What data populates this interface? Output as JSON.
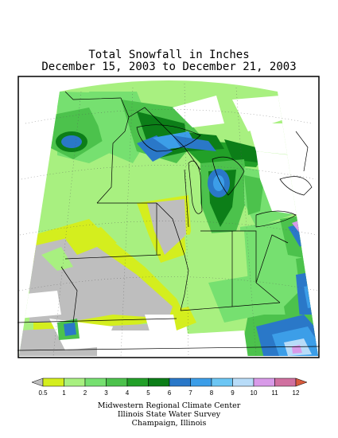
{
  "title": {
    "line1": "Total Snowfall in Inches",
    "line2": "December 15, 2003 to December 21, 2003"
  },
  "legend": {
    "labels": [
      "0.5",
      "1",
      "2",
      "3",
      "4",
      "5",
      "6",
      "7",
      "8",
      "9",
      "10",
      "11",
      "12"
    ],
    "colors": [
      "#bebebe",
      "#d4ee1e",
      "#a8f080",
      "#76e070",
      "#4cc24c",
      "#22a028",
      "#0c7e18",
      "#2a78c8",
      "#3c9ee8",
      "#6cc6f4",
      "#b8dcf8",
      "#d89ae8",
      "#d070a0",
      "#d85a3c"
    ]
  },
  "credit": {
    "line1": "Midwestern Regional Climate Center",
    "line2": "Illinois State Water Survey",
    "line3": "Champaign, Illinois"
  }
}
